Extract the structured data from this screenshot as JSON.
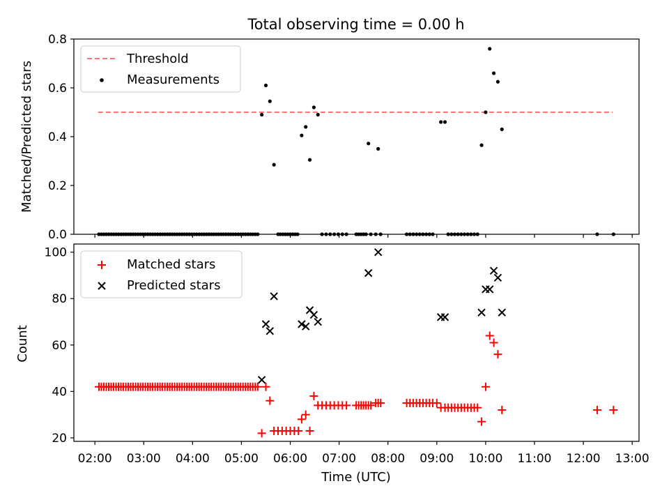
{
  "chart_data": {
    "title": "Total observing time = 0.00 h",
    "xlabel": "Time (UTC)",
    "x_ticks": [
      "02:00",
      "03:00",
      "04:00",
      "05:00",
      "06:00",
      "07:00",
      "08:00",
      "09:00",
      "10:00",
      "11:00",
      "12:00",
      "13:00"
    ],
    "x_range_hours": [
      1.57,
      13.14
    ],
    "top": {
      "type": "scatter",
      "ylabel": "Matched/Predicted stars",
      "ylim": [
        0,
        0.8
      ],
      "y_ticks": [
        "0.0",
        "0.2",
        "0.4",
        "0.6",
        "0.8"
      ],
      "legend_position": "top-left",
      "threshold": {
        "name": "Threshold",
        "value": 0.5,
        "x_start": "02:04",
        "x_end": "12:36",
        "color": "#ff7373"
      },
      "measurements": {
        "name": "Measurements",
        "color": "#000000",
        "points": [
          [
            "02:05",
            0
          ],
          [
            "02:08",
            0
          ],
          [
            "02:11",
            0
          ],
          [
            "02:14",
            0
          ],
          [
            "02:17",
            0
          ],
          [
            "02:20",
            0
          ],
          [
            "02:23",
            0
          ],
          [
            "02:26",
            0
          ],
          [
            "02:29",
            0
          ],
          [
            "02:32",
            0
          ],
          [
            "02:35",
            0
          ],
          [
            "02:38",
            0
          ],
          [
            "02:41",
            0
          ],
          [
            "02:44",
            0
          ],
          [
            "02:47",
            0
          ],
          [
            "02:50",
            0
          ],
          [
            "02:53",
            0
          ],
          [
            "02:56",
            0
          ],
          [
            "02:59",
            0
          ],
          [
            "03:02",
            0
          ],
          [
            "03:05",
            0
          ],
          [
            "03:08",
            0
          ],
          [
            "03:11",
            0
          ],
          [
            "03:14",
            0
          ],
          [
            "03:17",
            0
          ],
          [
            "03:20",
            0
          ],
          [
            "03:23",
            0
          ],
          [
            "03:26",
            0
          ],
          [
            "03:29",
            0
          ],
          [
            "03:32",
            0
          ],
          [
            "03:35",
            0
          ],
          [
            "03:38",
            0
          ],
          [
            "03:41",
            0
          ],
          [
            "03:44",
            0
          ],
          [
            "03:47",
            0
          ],
          [
            "03:50",
            0
          ],
          [
            "03:53",
            0
          ],
          [
            "03:56",
            0
          ],
          [
            "03:59",
            0
          ],
          [
            "04:02",
            0
          ],
          [
            "04:05",
            0
          ],
          [
            "04:08",
            0
          ],
          [
            "04:11",
            0
          ],
          [
            "04:14",
            0
          ],
          [
            "04:17",
            0
          ],
          [
            "04:20",
            0
          ],
          [
            "04:23",
            0
          ],
          [
            "04:26",
            0
          ],
          [
            "04:29",
            0
          ],
          [
            "04:32",
            0
          ],
          [
            "04:35",
            0
          ],
          [
            "04:38",
            0
          ],
          [
            "04:41",
            0
          ],
          [
            "04:44",
            0
          ],
          [
            "04:47",
            0
          ],
          [
            "04:50",
            0
          ],
          [
            "04:53",
            0
          ],
          [
            "04:56",
            0
          ],
          [
            "04:59",
            0
          ],
          [
            "05:02",
            0
          ],
          [
            "05:05",
            0
          ],
          [
            "05:08",
            0
          ],
          [
            "05:11",
            0
          ],
          [
            "05:14",
            0
          ],
          [
            "05:17",
            0
          ],
          [
            "05:20",
            0
          ],
          [
            "05:25",
            0.49
          ],
          [
            "05:30",
            0.61
          ],
          [
            "05:35",
            0.545
          ],
          [
            "05:40",
            0.285
          ],
          [
            "05:45",
            0
          ],
          [
            "05:48",
            0
          ],
          [
            "05:51",
            0
          ],
          [
            "05:54",
            0
          ],
          [
            "05:57",
            0
          ],
          [
            "06:00",
            0
          ],
          [
            "06:03",
            0
          ],
          [
            "06:06",
            0
          ],
          [
            "06:09",
            0
          ],
          [
            "06:14",
            0.405
          ],
          [
            "06:19",
            0.44
          ],
          [
            "06:24",
            0.305
          ],
          [
            "06:29",
            0.52
          ],
          [
            "06:34",
            0.49
          ],
          [
            "06:39",
            0
          ],
          [
            "06:44",
            0
          ],
          [
            "06:49",
            0
          ],
          [
            "06:54",
            0
          ],
          [
            "06:59",
            0
          ],
          [
            "07:04",
            0
          ],
          [
            "07:09",
            0
          ],
          [
            "07:21",
            0
          ],
          [
            "07:24",
            0
          ],
          [
            "07:27",
            0
          ],
          [
            "07:30",
            0
          ],
          [
            "07:33",
            0
          ],
          [
            "07:36",
            0.372
          ],
          [
            "07:39",
            0
          ],
          [
            "07:45",
            0
          ],
          [
            "07:48",
            0.35
          ],
          [
            "07:51",
            0
          ],
          [
            "08:23",
            0
          ],
          [
            "08:27",
            0
          ],
          [
            "08:31",
            0
          ],
          [
            "08:35",
            0
          ],
          [
            "08:39",
            0
          ],
          [
            "08:43",
            0
          ],
          [
            "08:47",
            0
          ],
          [
            "08:51",
            0
          ],
          [
            "08:55",
            0
          ],
          [
            "09:05",
            0.46
          ],
          [
            "09:10",
            0.46
          ],
          [
            "09:14",
            0
          ],
          [
            "09:18",
            0
          ],
          [
            "09:22",
            0
          ],
          [
            "09:26",
            0
          ],
          [
            "09:30",
            0
          ],
          [
            "09:34",
            0
          ],
          [
            "09:38",
            0
          ],
          [
            "09:42",
            0
          ],
          [
            "09:46",
            0
          ],
          [
            "09:50",
            0
          ],
          [
            "09:55",
            0.365
          ],
          [
            "10:00",
            0.5
          ],
          [
            "10:05",
            0.76
          ],
          [
            "10:10",
            0.66
          ],
          [
            "10:15",
            0.625
          ],
          [
            "10:20",
            0.43
          ],
          [
            "12:17",
            0
          ],
          [
            "12:37",
            0
          ]
        ]
      }
    },
    "bottom": {
      "type": "scatter",
      "ylabel": "Count",
      "ylim": [
        18.5,
        103.5
      ],
      "y_ticks": [
        20,
        40,
        60,
        80,
        100
      ],
      "legend_position": "top-left",
      "series": [
        {
          "name": "Matched stars",
          "marker": "+",
          "color": "#ff0000",
          "points": [
            [
              "02:05",
              42
            ],
            [
              "02:08",
              42
            ],
            [
              "02:11",
              42
            ],
            [
              "02:14",
              42
            ],
            [
              "02:17",
              42
            ],
            [
              "02:20",
              42
            ],
            [
              "02:23",
              42
            ],
            [
              "02:26",
              42
            ],
            [
              "02:29",
              42
            ],
            [
              "02:32",
              42
            ],
            [
              "02:35",
              42
            ],
            [
              "02:38",
              42
            ],
            [
              "02:41",
              42
            ],
            [
              "02:44",
              42
            ],
            [
              "02:47",
              42
            ],
            [
              "02:50",
              42
            ],
            [
              "02:53",
              42
            ],
            [
              "02:56",
              42
            ],
            [
              "02:59",
              42
            ],
            [
              "03:02",
              42
            ],
            [
              "03:05",
              42
            ],
            [
              "03:08",
              42
            ],
            [
              "03:11",
              42
            ],
            [
              "03:14",
              42
            ],
            [
              "03:17",
              42
            ],
            [
              "03:20",
              42
            ],
            [
              "03:23",
              42
            ],
            [
              "03:26",
              42
            ],
            [
              "03:29",
              42
            ],
            [
              "03:32",
              42
            ],
            [
              "03:35",
              42
            ],
            [
              "03:38",
              42
            ],
            [
              "03:41",
              42
            ],
            [
              "03:44",
              42
            ],
            [
              "03:47",
              42
            ],
            [
              "03:50",
              42
            ],
            [
              "03:53",
              42
            ],
            [
              "03:56",
              42
            ],
            [
              "03:59",
              42
            ],
            [
              "04:02",
              42
            ],
            [
              "04:05",
              42
            ],
            [
              "04:08",
              42
            ],
            [
              "04:11",
              42
            ],
            [
              "04:14",
              42
            ],
            [
              "04:17",
              42
            ],
            [
              "04:20",
              42
            ],
            [
              "04:23",
              42
            ],
            [
              "04:26",
              42
            ],
            [
              "04:29",
              42
            ],
            [
              "04:32",
              42
            ],
            [
              "04:35",
              42
            ],
            [
              "04:38",
              42
            ],
            [
              "04:41",
              42
            ],
            [
              "04:44",
              42
            ],
            [
              "04:47",
              42
            ],
            [
              "04:50",
              42
            ],
            [
              "04:53",
              42
            ],
            [
              "04:56",
              42
            ],
            [
              "04:59",
              42
            ],
            [
              "05:02",
              42
            ],
            [
              "05:05",
              42
            ],
            [
              "05:08",
              42
            ],
            [
              "05:11",
              42
            ],
            [
              "05:14",
              42
            ],
            [
              "05:17",
              42
            ],
            [
              "05:20",
              42
            ],
            [
              "05:25",
              22
            ],
            [
              "05:30",
              42
            ],
            [
              "05:35",
              36
            ],
            [
              "05:40",
              23
            ],
            [
              "05:45",
              23
            ],
            [
              "05:50",
              23
            ],
            [
              "05:55",
              23
            ],
            [
              "06:00",
              23
            ],
            [
              "06:05",
              23
            ],
            [
              "06:10",
              23
            ],
            [
              "06:14",
              28
            ],
            [
              "06:19",
              30
            ],
            [
              "06:24",
              23
            ],
            [
              "06:29",
              38
            ],
            [
              "06:34",
              34
            ],
            [
              "06:39",
              34
            ],
            [
              "06:44",
              34
            ],
            [
              "06:49",
              34
            ],
            [
              "06:54",
              34
            ],
            [
              "06:59",
              34
            ],
            [
              "07:04",
              34
            ],
            [
              "07:09",
              34
            ],
            [
              "07:21",
              34
            ],
            [
              "07:24",
              34
            ],
            [
              "07:27",
              34
            ],
            [
              "07:30",
              34
            ],
            [
              "07:33",
              34
            ],
            [
              "07:36",
              34
            ],
            [
              "07:39",
              34
            ],
            [
              "07:45",
              35
            ],
            [
              "07:48",
              35
            ],
            [
              "07:51",
              35
            ],
            [
              "08:23",
              35
            ],
            [
              "08:27",
              35
            ],
            [
              "08:31",
              35
            ],
            [
              "08:35",
              35
            ],
            [
              "08:39",
              35
            ],
            [
              "08:43",
              35
            ],
            [
              "08:47",
              35
            ],
            [
              "08:51",
              35
            ],
            [
              "08:55",
              35
            ],
            [
              "09:00",
              35
            ],
            [
              "09:05",
              33
            ],
            [
              "09:10",
              33
            ],
            [
              "09:14",
              33
            ],
            [
              "09:18",
              33
            ],
            [
              "09:22",
              33
            ],
            [
              "09:26",
              33
            ],
            [
              "09:30",
              33
            ],
            [
              "09:34",
              33
            ],
            [
              "09:38",
              33
            ],
            [
              "09:42",
              33
            ],
            [
              "09:46",
              33
            ],
            [
              "09:50",
              33
            ],
            [
              "09:55",
              27
            ],
            [
              "10:00",
              42
            ],
            [
              "10:05",
              64
            ],
            [
              "10:10",
              61
            ],
            [
              "10:15",
              56
            ],
            [
              "10:20",
              32
            ],
            [
              "12:17",
              32
            ],
            [
              "12:37",
              32
            ]
          ]
        },
        {
          "name": "Predicted stars",
          "marker": "x",
          "color": "#000000",
          "points": [
            [
              "05:25",
              45
            ],
            [
              "05:30",
              69
            ],
            [
              "05:35",
              66
            ],
            [
              "05:40",
              81
            ],
            [
              "06:14",
              69
            ],
            [
              "06:19",
              68
            ],
            [
              "06:24",
              75
            ],
            [
              "06:29",
              73
            ],
            [
              "06:34",
              70
            ],
            [
              "07:36",
              91
            ],
            [
              "07:48",
              100
            ],
            [
              "09:05",
              72
            ],
            [
              "09:10",
              72
            ],
            [
              "09:55",
              74
            ],
            [
              "10:00",
              84
            ],
            [
              "10:05",
              84
            ],
            [
              "10:10",
              92
            ],
            [
              "10:15",
              89
            ],
            [
              "10:20",
              74
            ]
          ]
        }
      ]
    }
  }
}
